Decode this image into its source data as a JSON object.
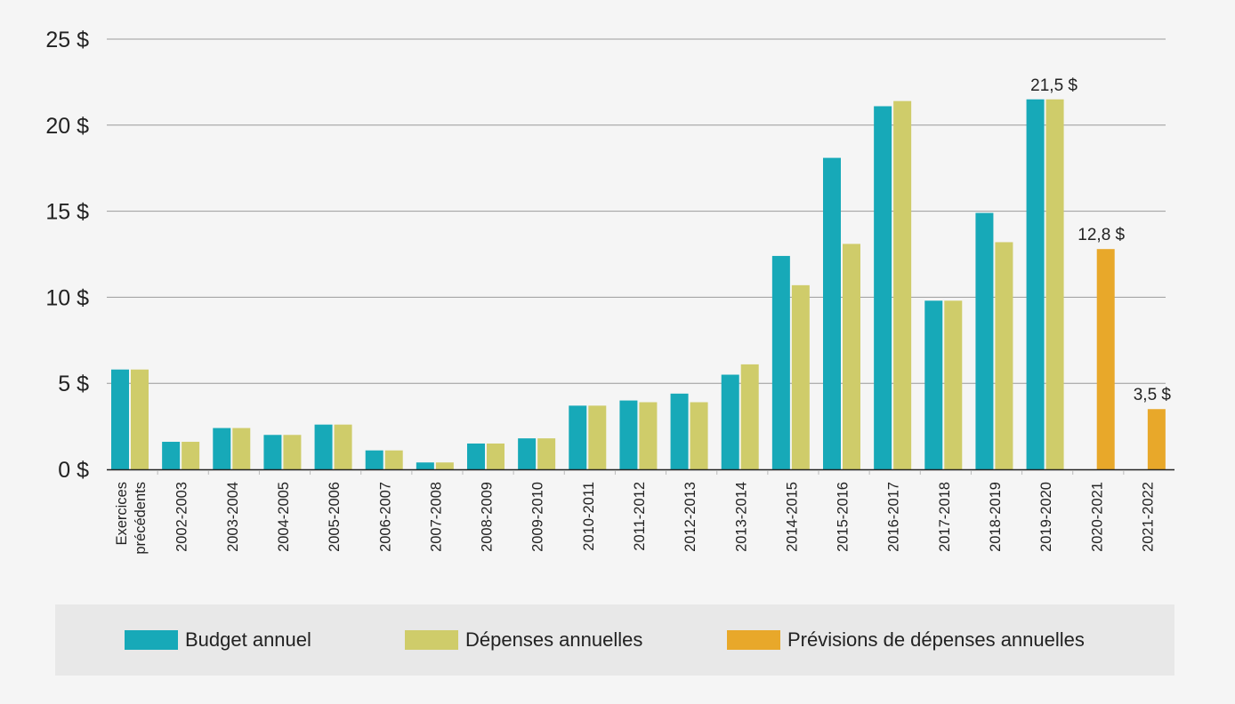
{
  "chart_data": {
    "type": "bar",
    "categories": [
      [
        "Exercices",
        "précédents"
      ],
      [
        "2002-2003"
      ],
      [
        "2003-2004"
      ],
      [
        "2004-2005"
      ],
      [
        "2005-2006"
      ],
      [
        "2006-2007"
      ],
      [
        "2007-2008"
      ],
      [
        "2008-2009"
      ],
      [
        "2009-2010"
      ],
      [
        "2010-2011"
      ],
      [
        "2011-2012"
      ],
      [
        "2012-2013"
      ],
      [
        "2013-2014"
      ],
      [
        "2014-2015"
      ],
      [
        "2015-2016"
      ],
      [
        "2016-2017"
      ],
      [
        "2017-2018"
      ],
      [
        "2018-2019"
      ],
      [
        "2019-2020"
      ],
      [
        "2020-2021"
      ],
      [
        "2021-2022"
      ]
    ],
    "series": [
      {
        "name": "Budget annuel",
        "color": "#17a9b8",
        "values": [
          5.8,
          1.6,
          2.4,
          2.0,
          2.6,
          1.1,
          0.4,
          1.5,
          1.8,
          3.7,
          4.0,
          4.4,
          5.5,
          12.4,
          18.1,
          21.1,
          9.8,
          14.9,
          21.5,
          null,
          null
        ]
      },
      {
        "name": "Dépenses annuelles",
        "color": "#cfcc6a",
        "values": [
          5.8,
          1.6,
          2.4,
          2.0,
          2.6,
          1.1,
          0.4,
          1.5,
          1.8,
          3.7,
          3.9,
          3.9,
          6.1,
          10.7,
          13.1,
          21.4,
          9.8,
          13.2,
          21.5,
          null,
          null
        ]
      },
      {
        "name": "Prévisions de dépenses annuelles",
        "color": "#e8a82a",
        "values": [
          null,
          null,
          null,
          null,
          null,
          null,
          null,
          null,
          null,
          null,
          null,
          null,
          null,
          null,
          null,
          null,
          null,
          null,
          null,
          12.8,
          3.5
        ]
      }
    ],
    "data_labels": [
      {
        "category_index": 18,
        "value": 21.5,
        "text": "21,5 $"
      },
      {
        "category_index": 19,
        "value": 12.8,
        "text": "12,8 $"
      },
      {
        "category_index": 20,
        "value": 3.5,
        "text": "3,5 $"
      }
    ],
    "yticks": [
      {
        "value": 0,
        "label": "0 $"
      },
      {
        "value": 5,
        "label": "5 $"
      },
      {
        "value": 10,
        "label": "10 $"
      },
      {
        "value": 15,
        "label": "15 $"
      },
      {
        "value": 20,
        "label": "20 $"
      },
      {
        "value": 25,
        "label": "25 $"
      }
    ],
    "ylim": [
      0,
      25
    ],
    "title": "",
    "xlabel": "",
    "ylabel": "",
    "grid": true,
    "legend_position": "bottom"
  }
}
